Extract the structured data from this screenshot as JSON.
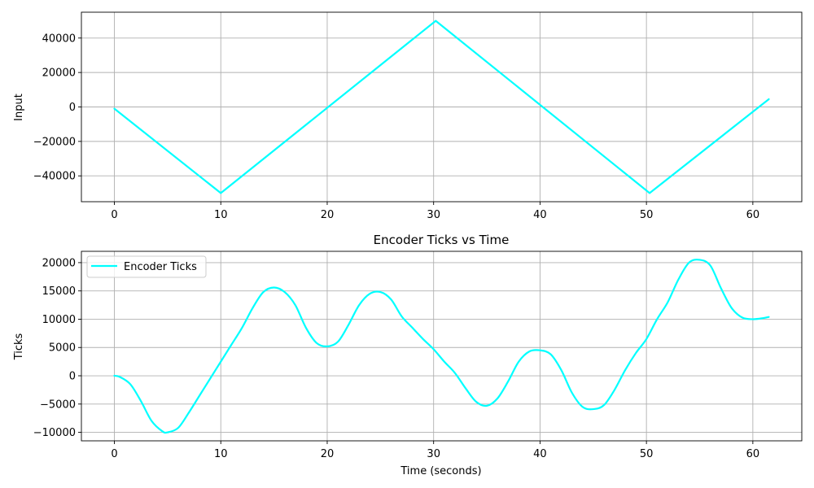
{
  "chart_data": [
    {
      "type": "line",
      "title": "",
      "xlabel": "",
      "ylabel": "Input",
      "xlim": [
        -3.1,
        64.6
      ],
      "ylim": [
        -55000,
        55000
      ],
      "xticks": [
        0,
        10,
        20,
        30,
        40,
        50,
        60
      ],
      "yticks": [
        -40000,
        -20000,
        0,
        20000,
        40000
      ],
      "grid": true,
      "series": [
        {
          "name": "",
          "color": "#00ffff",
          "x": [
            0,
            10,
            30.2,
            50.3,
            61.5
          ],
          "y": [
            -1000,
            -50000,
            50000,
            -50000,
            4500
          ]
        }
      ]
    },
    {
      "type": "line",
      "title": "Encoder Ticks vs Time",
      "xlabel": "Time (seconds)",
      "ylabel": "Ticks",
      "xlim": [
        -3.1,
        64.6
      ],
      "ylim": [
        -11500,
        22000
      ],
      "xticks": [
        0,
        10,
        20,
        30,
        40,
        50,
        60
      ],
      "yticks": [
        -10000,
        -5000,
        0,
        5000,
        10000,
        15000,
        20000
      ],
      "grid": true,
      "legend": "upper-left",
      "series": [
        {
          "name": "Encoder Ticks",
          "color": "#00ffff",
          "x": [
            0,
            0.5,
            1.5,
            2.5,
            3.5,
            4.5,
            5,
            6,
            7,
            8,
            9,
            10,
            11,
            12,
            13,
            14,
            15,
            16,
            17,
            18,
            19,
            20,
            21,
            22,
            23,
            24,
            25,
            26,
            27,
            28,
            29,
            30,
            31,
            32,
            33,
            34,
            35,
            36,
            37,
            38,
            39,
            40,
            41,
            42,
            43,
            44,
            45,
            46,
            47,
            48,
            49,
            50,
            51,
            52,
            53,
            54,
            55,
            56,
            57,
            58,
            59,
            60,
            61,
            61.5
          ],
          "y": [
            0,
            -200,
            -1500,
            -4500,
            -8000,
            -9800,
            -10000,
            -9200,
            -6500,
            -3500,
            -500,
            2500,
            5500,
            8500,
            12000,
            14800,
            15600,
            14800,
            12500,
            8500,
            5800,
            5200,
            6000,
            9000,
            12500,
            14500,
            14800,
            13500,
            10500,
            8500,
            6500,
            4700,
            2500,
            500,
            -2200,
            -4600,
            -5300,
            -4000,
            -1000,
            2500,
            4300,
            4500,
            3800,
            1000,
            -3000,
            -5500,
            -5900,
            -5200,
            -2500,
            1000,
            4000,
            6500,
            10000,
            13000,
            17000,
            20000,
            20500,
            19500,
            15500,
            12000,
            10300,
            10000,
            10200,
            10400
          ]
        }
      ]
    }
  ]
}
